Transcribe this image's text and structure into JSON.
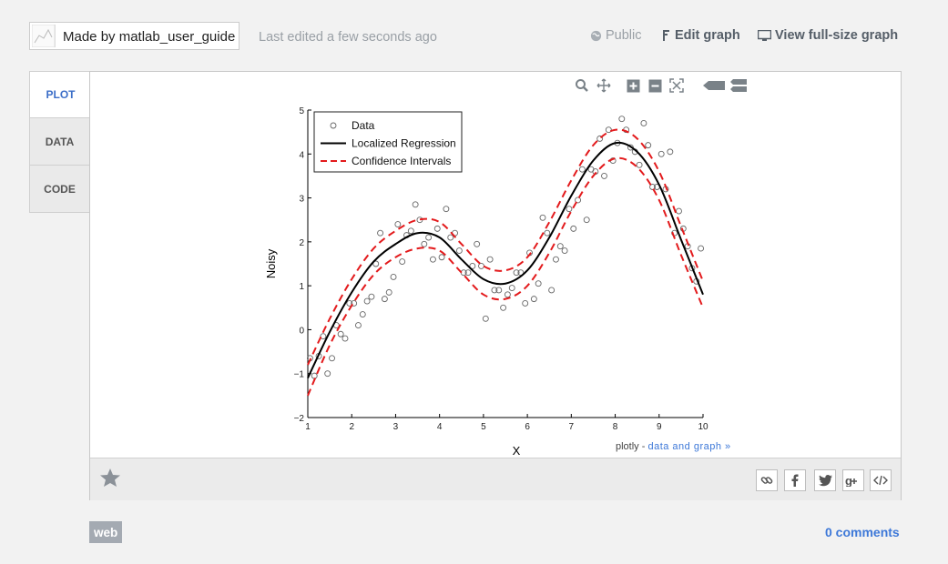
{
  "header": {
    "made_by_prefix": "Made by ",
    "author": "matlab_user_guide",
    "last_edited": "Last edited a few seconds ago",
    "public_label": "Public",
    "edit_label": "Edit graph",
    "view_label": "View full-size graph"
  },
  "tabs": [
    {
      "label": "PLOT",
      "active": true
    },
    {
      "label": "DATA",
      "active": false
    },
    {
      "label": "CODE",
      "active": false
    }
  ],
  "modebar": [
    "zoom-icon",
    "pan-icon",
    "zoom-in-icon",
    "zoom-out-icon",
    "autoscale-icon",
    "hover-closest-icon",
    "hover-compare-icon"
  ],
  "credit": {
    "prefix": "plotly - ",
    "link": "data and graph »"
  },
  "footer": {
    "tag": "web",
    "comments": "0 comments"
  },
  "share_buttons": [
    "link-icon",
    "facebook-icon",
    "twitter-icon",
    "google-plus-icon",
    "embed-icon"
  ],
  "chart_data": {
    "type": "scatter",
    "xlabel": "X",
    "ylabel": "Noisy",
    "xlim": [
      1,
      10
    ],
    "ylim": [
      -2,
      5
    ],
    "xticks": [
      1,
      2,
      3,
      4,
      5,
      6,
      7,
      8,
      9,
      10
    ],
    "yticks": [
      -2,
      -1,
      0,
      1,
      2,
      3,
      4,
      5
    ],
    "legend_position": "top-left",
    "grid": false,
    "series": [
      {
        "name": "Data",
        "style": "markers",
        "color": "#666666",
        "x": [
          1.05,
          1.15,
          1.25,
          1.35,
          1.45,
          1.55,
          1.65,
          1.75,
          1.85,
          1.95,
          2.05,
          2.15,
          2.25,
          2.35,
          2.45,
          2.55,
          2.65,
          2.75,
          2.85,
          2.95,
          3.05,
          3.15,
          3.25,
          3.35,
          3.45,
          3.55,
          3.65,
          3.75,
          3.85,
          3.95,
          4.05,
          4.15,
          4.25,
          4.35,
          4.45,
          4.55,
          4.65,
          4.75,
          4.85,
          4.95,
          5.05,
          5.15,
          5.25,
          5.35,
          5.45,
          5.55,
          5.65,
          5.75,
          5.85,
          5.95,
          6.05,
          6.15,
          6.25,
          6.35,
          6.45,
          6.55,
          6.65,
          6.75,
          6.85,
          6.95,
          7.05,
          7.15,
          7.25,
          7.35,
          7.45,
          7.55,
          7.65,
          7.75,
          7.85,
          7.95,
          8.05,
          8.15,
          8.25,
          8.35,
          8.45,
          8.55,
          8.65,
          8.75,
          8.85,
          8.95,
          9.05,
          9.15,
          9.25,
          9.35,
          9.45,
          9.55,
          9.65,
          9.75,
          9.85,
          9.95
        ],
        "y": [
          -0.65,
          -1.05,
          -0.6,
          -0.15,
          -1.0,
          -0.65,
          0.1,
          -0.1,
          -0.2,
          0.6,
          0.6,
          0.1,
          0.35,
          0.65,
          0.75,
          1.5,
          2.2,
          0.7,
          0.85,
          1.2,
          2.4,
          1.55,
          2.15,
          2.25,
          2.85,
          2.5,
          1.95,
          2.1,
          1.6,
          2.3,
          1.65,
          2.75,
          2.1,
          2.2,
          1.8,
          1.3,
          1.3,
          1.45,
          1.95,
          1.45,
          0.25,
          1.6,
          0.9,
          0.9,
          0.5,
          0.8,
          0.95,
          1.3,
          1.3,
          0.6,
          1.75,
          0.7,
          1.05,
          2.55,
          2.2,
          0.9,
          1.6,
          1.9,
          1.8,
          2.75,
          2.3,
          2.95,
          3.65,
          2.5,
          3.65,
          3.6,
          4.35,
          3.5,
          4.55,
          3.85,
          4.25,
          4.8,
          4.55,
          4.15,
          4.05,
          3.75,
          4.7,
          4.2,
          3.25,
          3.25,
          4.0,
          3.2,
          4.05,
          2.2,
          2.7,
          2.3,
          1.9,
          1.4,
          1.1,
          1.85
        ]
      },
      {
        "name": "Localized Regression",
        "style": "line",
        "color": "#000000",
        "x": [
          1,
          1.5,
          2,
          2.5,
          3,
          3.5,
          4,
          4.5,
          5,
          5.5,
          6,
          6.5,
          7,
          7.5,
          8,
          8.5,
          9,
          9.5,
          10
        ],
        "y": [
          -1.1,
          -0.05,
          0.85,
          1.55,
          1.95,
          2.2,
          2.1,
          1.6,
          1.15,
          1.05,
          1.35,
          2.1,
          3.05,
          3.85,
          4.25,
          4.05,
          3.3,
          2.05,
          0.8
        ]
      },
      {
        "name": "Confidence Intervals",
        "style": "dash",
        "color": "#e31a1c",
        "x": [
          1,
          1.5,
          2,
          2.5,
          3,
          3.5,
          4,
          4.5,
          5,
          5.5,
          6,
          6.5,
          7,
          7.5,
          8,
          8.5,
          9,
          9.5,
          10
        ],
        "y": [
          -0.8,
          0.25,
          1.15,
          1.85,
          2.25,
          2.5,
          2.45,
          1.95,
          1.45,
          1.35,
          1.65,
          2.45,
          3.4,
          4.2,
          4.55,
          4.35,
          3.6,
          2.35,
          1.1
        ]
      },
      {
        "name": "",
        "style": "dash",
        "color": "#e31a1c",
        "x": [
          1,
          1.5,
          2,
          2.5,
          3,
          3.5,
          4,
          4.5,
          5,
          5.5,
          6,
          6.5,
          7,
          7.5,
          8,
          8.5,
          9,
          9.5,
          10
        ],
        "y": [
          -1.5,
          -0.35,
          0.55,
          1.25,
          1.65,
          1.85,
          1.8,
          1.3,
          0.8,
          0.7,
          1.0,
          1.75,
          2.7,
          3.5,
          3.9,
          3.7,
          2.95,
          1.7,
          0.5
        ]
      }
    ]
  }
}
